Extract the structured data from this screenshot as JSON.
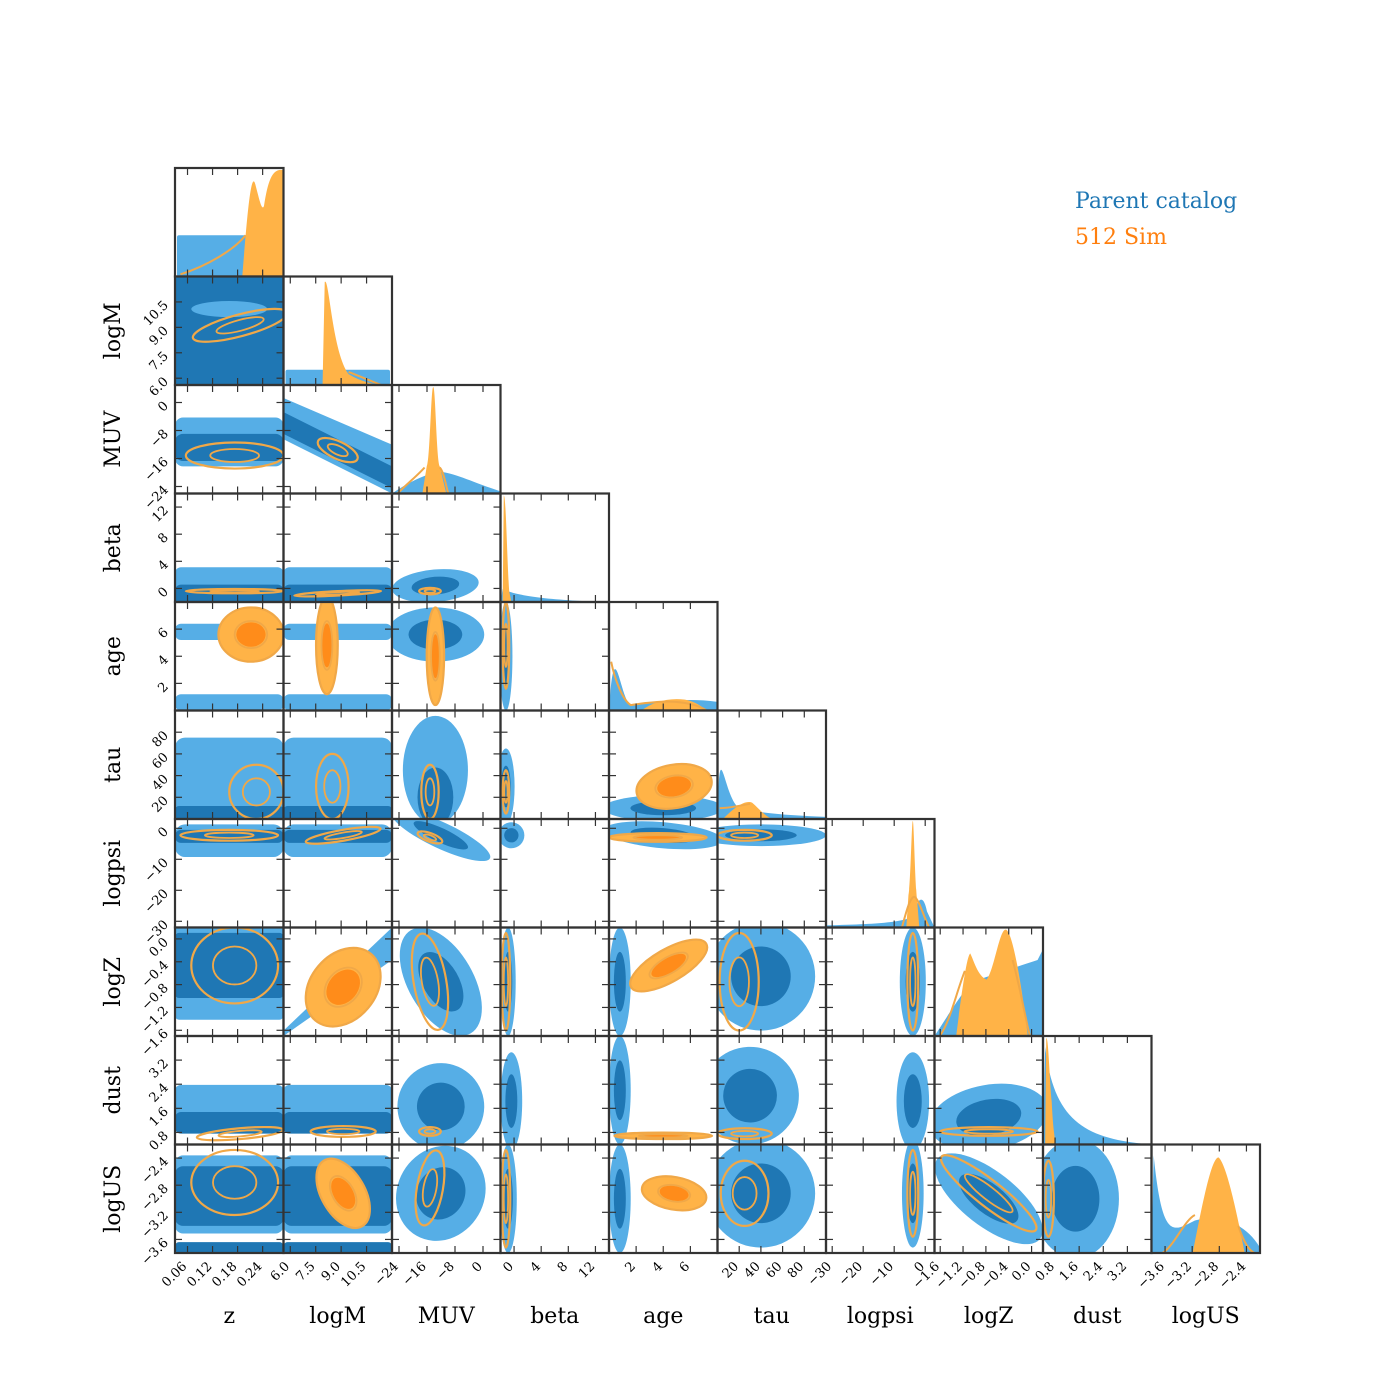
{
  "chart_data": {
    "type": "corner",
    "parameters": [
      "z",
      "logM",
      "MUV",
      "beta",
      "age",
      "tau",
      "logpsi",
      "logZ",
      "dust",
      "logUS"
    ],
    "ranges": {
      "z": [
        0.03,
        0.29
      ],
      "logM": [
        5.6,
        12.0
      ],
      "MUV": [
        -26,
        5
      ],
      "beta": [
        -2,
        14
      ],
      "age": [
        0,
        8
      ],
      "tau": [
        0,
        100
      ],
      "logpsi": [
        -32,
        3
      ],
      "logZ": [
        -1.7,
        0.2
      ],
      "dust": [
        0.4,
        4.0
      ],
      "logUS": [
        -3.8,
        -2.2
      ]
    },
    "ticks": {
      "z": [
        0.06,
        0.12,
        0.18,
        0.24
      ],
      "logM": [
        6.0,
        7.5,
        9.0,
        10.5
      ],
      "MUV": [
        -24,
        -16,
        -8,
        0
      ],
      "beta": [
        0,
        4,
        8,
        12
      ],
      "age": [
        2,
        4,
        6
      ],
      "tau": [
        20,
        40,
        60,
        80
      ],
      "logpsi": [
        -30,
        -20,
        -10,
        0
      ],
      "logZ": [
        -1.6,
        -1.2,
        -0.8,
        -0.4,
        0.0
      ],
      "dust": [
        0.8,
        1.6,
        2.4,
        3.2
      ],
      "logUS": [
        -3.6,
        -3.2,
        -2.8,
        -2.4
      ]
    },
    "tick_labels": {
      "z": [
        "0.06",
        "0.12",
        "0.18",
        "0.24"
      ],
      "logM": [
        "6.0",
        "7.5",
        "9.0",
        "10.5"
      ],
      "MUV": [
        "−24",
        "−16",
        "−8",
        "0"
      ],
      "beta": [
        "0",
        "4",
        "8",
        "12"
      ],
      "age": [
        "2",
        "4",
        "6"
      ],
      "tau": [
        "20",
        "40",
        "60",
        "80"
      ],
      "logpsi": [
        "−30",
        "−20",
        "−10",
        "0"
      ],
      "logZ": [
        "−1.6",
        "−1.2",
        "−0.8",
        "−0.4",
        "0.0"
      ],
      "dust": [
        "0.8",
        "1.6",
        "2.4",
        "3.2"
      ],
      "logUS": [
        "−3.6",
        "−3.2",
        "−2.8",
        "−2.4"
      ]
    },
    "series": [
      {
        "name": "Parent catalog",
        "color": "#1f77b4",
        "fill_light": "#56aee6",
        "fill_dark": "#1f77b4"
      },
      {
        "name": "512 Sim",
        "color": "#ff7f0e",
        "fill_light": "#ffb347",
        "fill_dark": "#ff8c1a",
        "line": "#f0a848"
      }
    ],
    "legend": "top-right"
  }
}
